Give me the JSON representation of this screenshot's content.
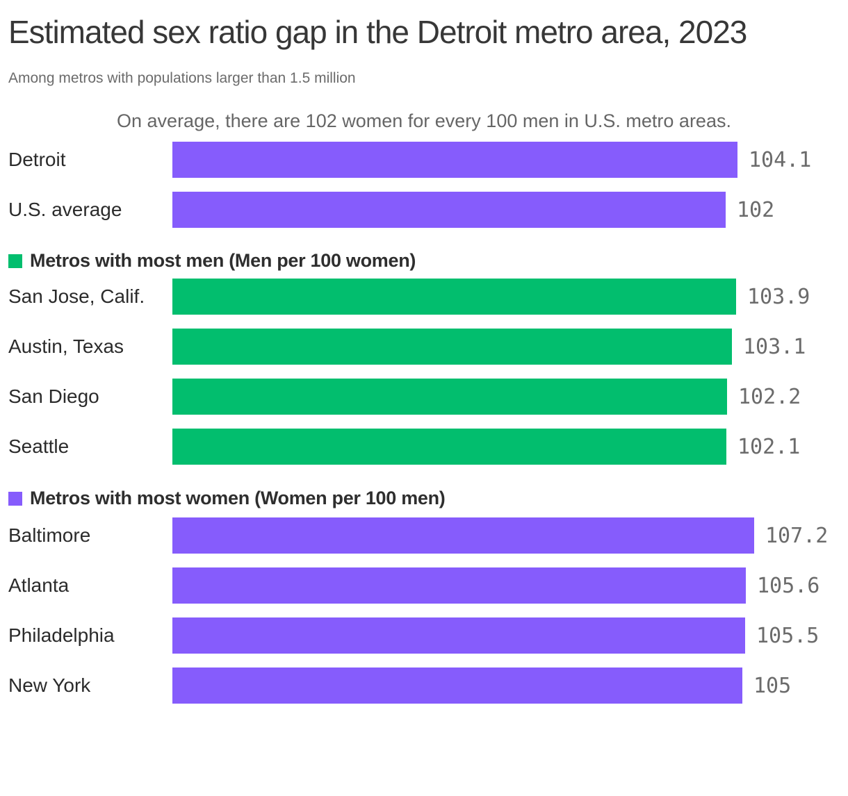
{
  "chart_data": {
    "type": "bar",
    "title": "Estimated sex ratio gap in the Detroit metro area, 2023",
    "subtitle": "Among metros with populations larger than 1.5 million",
    "annotation": "On average, there are 102 women for every 100 men in U.S. metro areas.",
    "orientation": "horizontal",
    "value_axis_min": 0,
    "value_axis_max": 107.2,
    "colors": {
      "purple": "#865CFC",
      "green": "#02BE6E"
    },
    "groups": [
      {
        "name": "",
        "color": "#865CFC",
        "bars": [
          {
            "label": "Detroit",
            "value": 104.1,
            "display": "104.1"
          },
          {
            "label": "U.S. average",
            "value": 102,
            "display": "102"
          }
        ]
      },
      {
        "name": "Metros with most men (Men per 100 women)",
        "color": "#02BE6E",
        "bars": [
          {
            "label": "San Jose, Calif.",
            "value": 103.9,
            "display": "103.9"
          },
          {
            "label": "Austin, Texas",
            "value": 103.1,
            "display": "103.1"
          },
          {
            "label": "San Diego",
            "value": 102.2,
            "display": "102.2"
          },
          {
            "label": "Seattle",
            "value": 102.1,
            "display": "102.1"
          }
        ]
      },
      {
        "name": "Metros with most women (Women per 100 men)",
        "color": "#865CFC",
        "bars": [
          {
            "label": "Baltimore",
            "value": 107.2,
            "display": "107.2"
          },
          {
            "label": "Atlanta",
            "value": 105.6,
            "display": "105.6"
          },
          {
            "label": "Philadelphia",
            "value": 105.5,
            "display": "105.5"
          },
          {
            "label": "New York",
            "value": 105,
            "display": "105"
          }
        ]
      }
    ]
  }
}
